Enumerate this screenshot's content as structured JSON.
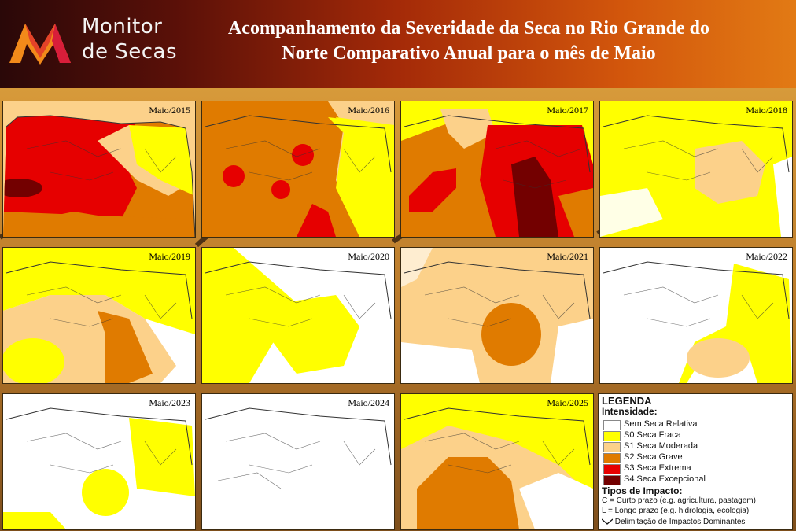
{
  "header": {
    "brand_line1": "Monitor",
    "brand_line2": "de Secas",
    "title_line1": "Acompanhamento da Severidade da Seca no Rio Grande do",
    "title_line2": "Norte Comparativo Anual para o mês de Maio"
  },
  "colors": {
    "s0": "#ffff00",
    "s1": "#fcd18a",
    "s2": "#e07b00",
    "s3": "#e60000",
    "s4": "#730000",
    "none": "#ffffff"
  },
  "maps": [
    {
      "label": "Maio/2015"
    },
    {
      "label": "Maio/2016"
    },
    {
      "label": "Maio/2017"
    },
    {
      "label": "Maio/2018"
    },
    {
      "label": "Maio/2019"
    },
    {
      "label": "Maio/2020"
    },
    {
      "label": "Maio/2021"
    },
    {
      "label": "Maio/2022"
    },
    {
      "label": "Maio/2023"
    },
    {
      "label": "Maio/2024"
    },
    {
      "label": "Maio/2025"
    }
  ],
  "legend": {
    "title": "LEGENDA",
    "intensity_title": "Intensidade:",
    "items": [
      {
        "label": "Sem Seca Relativa",
        "color": "#ffffff"
      },
      {
        "label": "S0 Seca Fraca",
        "color": "#ffff00"
      },
      {
        "label": "S1 Seca Moderada",
        "color": "#fcd18a"
      },
      {
        "label": "S2 Seca Grave",
        "color": "#e07b00"
      },
      {
        "label": "S3 Seca Extrema",
        "color": "#e60000"
      },
      {
        "label": "S4 Seca Excepcional",
        "color": "#730000"
      }
    ],
    "impact_title": "Tipos de Impacto:",
    "impacts": [
      "C = Curto prazo (e.g. agricultura, pastagem)",
      "L = Longo prazo (e.g. hidrologia, ecologia)"
    ],
    "delimitation": "Delimitação de Impactos Dominantes"
  }
}
